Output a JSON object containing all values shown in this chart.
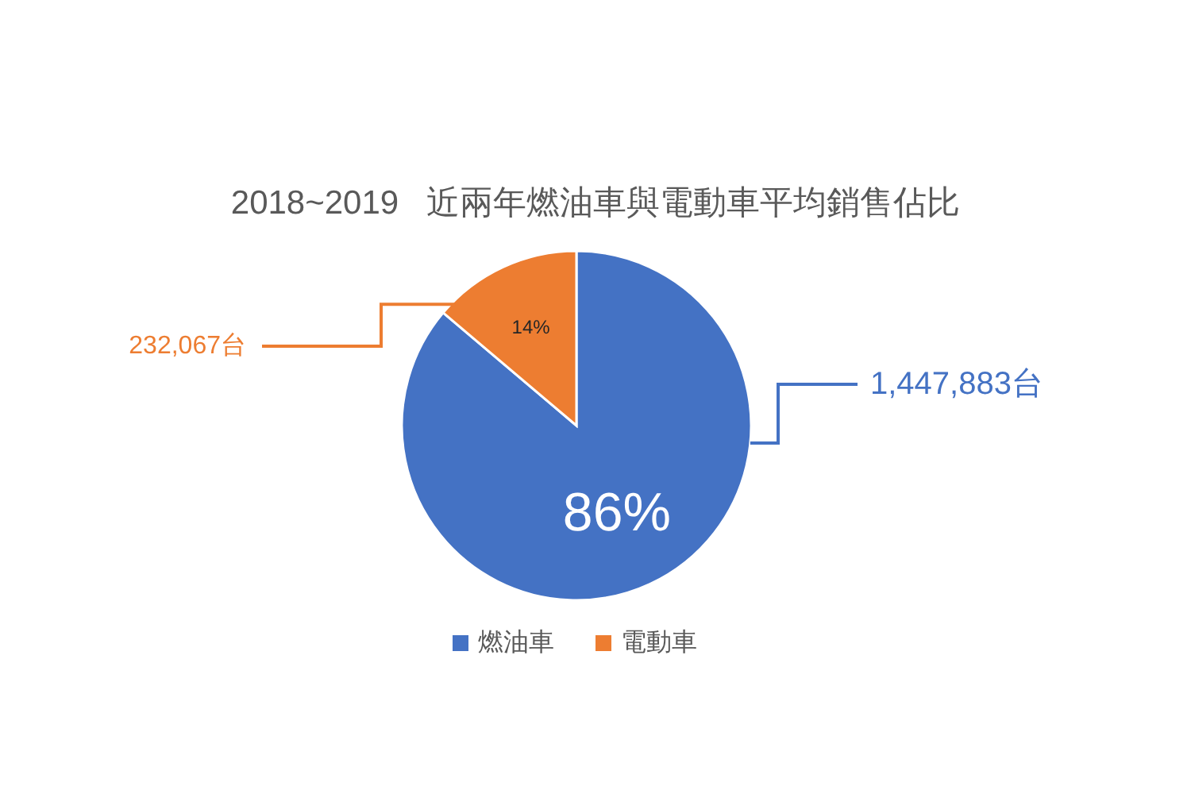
{
  "chart_data": {
    "type": "pie",
    "title": "2018~2019   近兩年燃油車與電動車平均銷售佔比",
    "categories": [
      "燃油車",
      "電動車"
    ],
    "values": [
      1447883,
      232067
    ],
    "colors": [
      "#4472c4",
      "#ed7d31"
    ],
    "value_labels": [
      "1,447,883台",
      "232,067台"
    ],
    "annotations": [
      "86%",
      "14%"
    ],
    "legend": "bottom"
  }
}
